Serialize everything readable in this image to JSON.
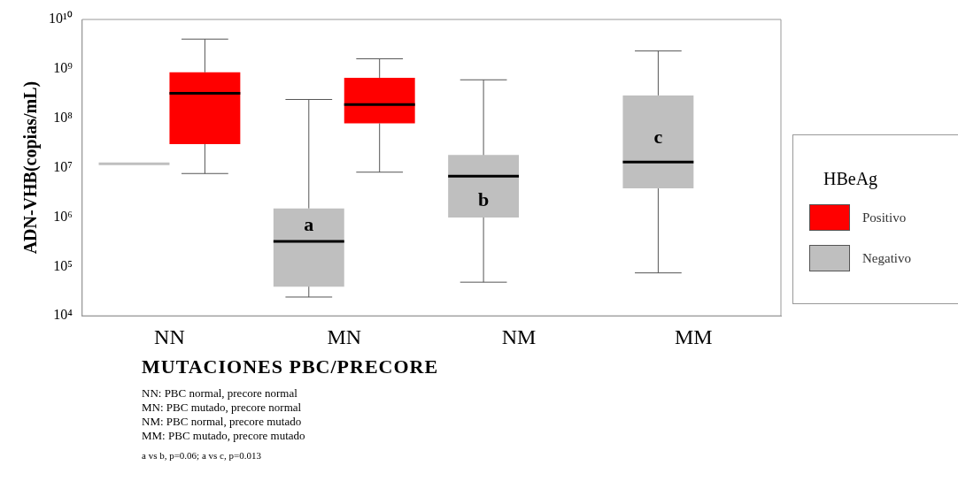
{
  "chart_data": {
    "type": "box",
    "xlabel": "MUTACIONES PBC/PRECORE",
    "ylabel": "ADN-VHB(copias/mL)",
    "legend_title": "HBeAg",
    "legend": "right",
    "log": "y",
    "categories": [
      "NN",
      "MN",
      "NM",
      "MM"
    ],
    "ylim": [
      10000,
      10000000000
    ],
    "yticks": [
      {
        "value": 10000,
        "label": "10⁴"
      },
      {
        "value": 100000,
        "label": "10⁵"
      },
      {
        "value": 1000000,
        "label": "10⁶"
      },
      {
        "value": 10000000,
        "label": "10⁷"
      },
      {
        "value": 100000000,
        "label": "10⁸"
      },
      {
        "value": 1000000000,
        "label": "10⁹"
      },
      {
        "value": 10000000000,
        "label": "10¹⁰"
      }
    ],
    "series": [
      {
        "name": "Positivo",
        "color": "#ff0000",
        "boxes": [
          {
            "low": 7600000,
            "q1": 30000000,
            "median": 320000000,
            "q3": 850000000,
            "high": 4000000000
          },
          {
            "low": 8100000,
            "q1": 79000000,
            "median": 190000000,
            "q3": 660000000,
            "high": 1600000000
          },
          null,
          null
        ]
      },
      {
        "name": "Negativo",
        "color": "#bfbfbf",
        "boxes": [
          {
            "low": 12000000,
            "q1": 12000000,
            "median": 12000000,
            "q3": 12000000,
            "high": 12000000
          },
          {
            "low": 24000,
            "q1": 39000,
            "median": 320000,
            "q3": 1500000,
            "high": 240000000
          },
          {
            "low": 48000,
            "q1": 980000,
            "median": 6700000,
            "q3": 18000000,
            "high": 600000000
          },
          {
            "low": 74000,
            "q1": 3800000,
            "median": 13000000,
            "q3": 290000000,
            "high": 2300000000
          }
        ]
      }
    ],
    "annotations": [
      {
        "text": "a",
        "x": "MN",
        "y": 680000
      },
      {
        "text": "b",
        "x": "NM",
        "y": 2100000
      },
      {
        "text": "c",
        "x": "MM",
        "y": 40000000
      },
      "NN:  PBC normal, precore normal",
      "MN: PBC mutado, precore normal",
      "NM: PBC normal, precore mutado",
      "MM: PBC mutado, precore mutado",
      "a vs b, p=0.06; a vs c, p=0.013"
    ]
  }
}
